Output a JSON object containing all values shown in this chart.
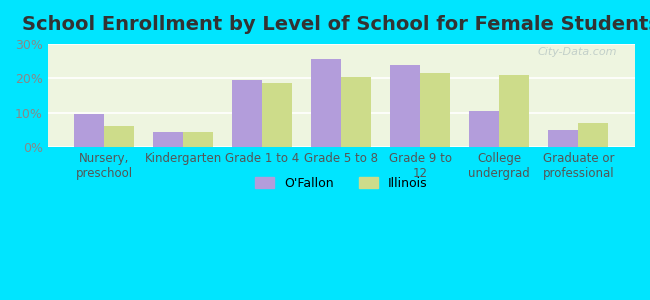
{
  "title": "School Enrollment by Level of School for Female Students",
  "categories": [
    "Nursery,\npreschool",
    "Kindergarten",
    "Grade 1 to 4",
    "Grade 5 to 8",
    "Grade 9 to\n12",
    "College\nundergrad",
    "Graduate or\nprofessional"
  ],
  "ofallon_values": [
    9.5,
    4.5,
    19.5,
    25.5,
    24.0,
    10.5,
    5.0
  ],
  "illinois_values": [
    6.0,
    4.5,
    18.5,
    20.5,
    21.5,
    21.0,
    7.0
  ],
  "ofallon_color": "#b39ddb",
  "illinois_color": "#cddc8a",
  "background_outer": "#00e5ff",
  "background_plot": "#f0f7e6",
  "ylim": [
    0,
    30
  ],
  "yticks": [
    0,
    10,
    20,
    30
  ],
  "ytick_labels": [
    "0%",
    "10%",
    "20%",
    "30%"
  ],
  "legend_labels": [
    "O'Fallon",
    "Illinois"
  ],
  "bar_width": 0.38,
  "title_fontsize": 14
}
